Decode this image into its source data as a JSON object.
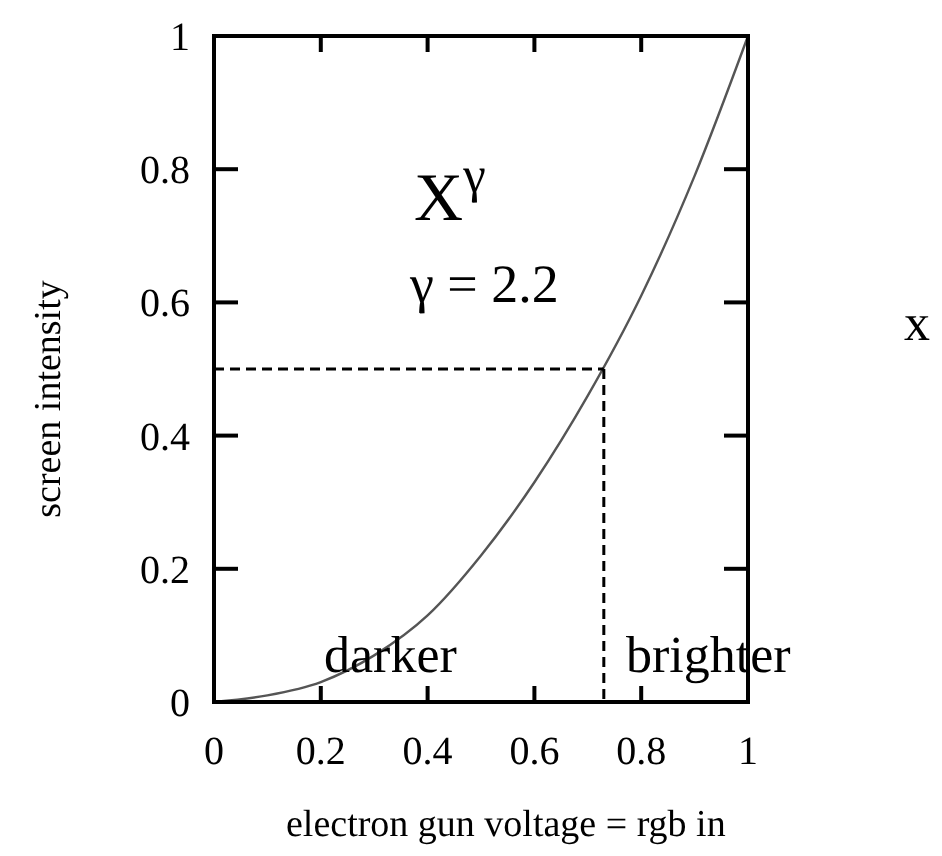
{
  "chart_data": {
    "type": "line",
    "xlabel": "electron gun voltage  = rgb  in",
    "ylabel": "screen intensity",
    "xlim": [
      0,
      1
    ],
    "ylim": [
      0,
      1
    ],
    "xticks": [
      0,
      0.2,
      0.4,
      0.6,
      0.8,
      1
    ],
    "yticks": [
      0,
      0.2,
      0.4,
      0.6,
      0.8,
      1
    ],
    "series": [
      {
        "color": "#555555",
        "line_style": "solid",
        "x": [
          0,
          0.1,
          0.2,
          0.3,
          0.4,
          0.5,
          0.6,
          0.7,
          0.8,
          0.9,
          1
        ],
        "values": [
          0,
          0.01,
          0.03,
          0.07,
          0.13,
          0.22,
          0.33,
          0.46,
          0.61,
          0.79,
          1
        ]
      },
      {
        "color": "#000000",
        "line_style": "dashed",
        "x": [
          0,
          0.73
        ],
        "values": [
          0.5,
          0.5
        ]
      },
      {
        "color": "#000000",
        "line_style": "dashed",
        "x": [
          0.73,
          0.73
        ],
        "values": [
          0.5,
          0
        ]
      }
    ],
    "annotations": [
      "X$^{γ}$",
      "γ = 2.2",
      "darker",
      "brighter",
      "x"
    ],
    "grid": false
  }
}
